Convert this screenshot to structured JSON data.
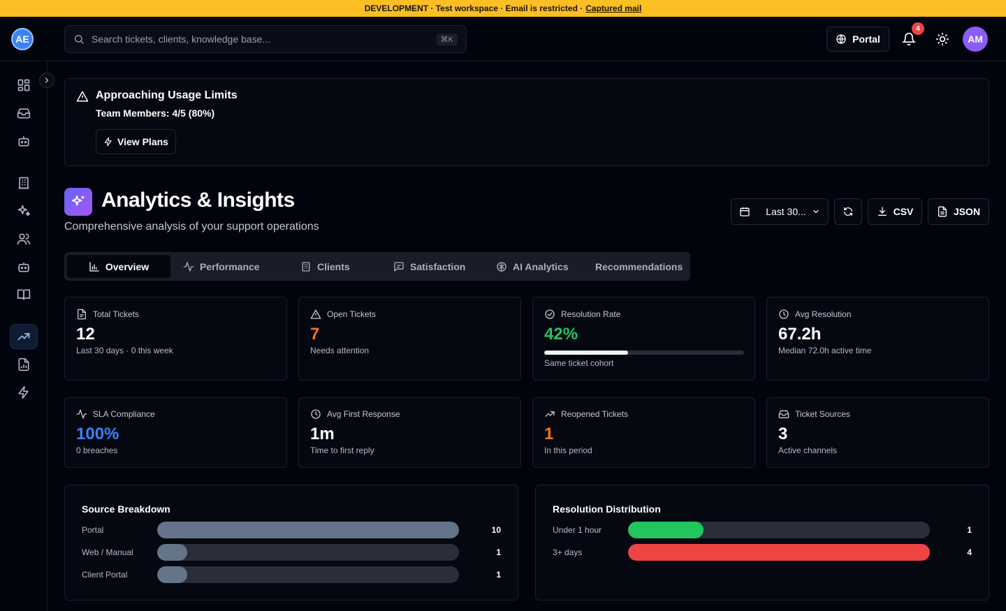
{
  "banner": {
    "text": "DEVELOPMENT · Test workspace · Email is restricted ·",
    "link": "Captured mail"
  },
  "logo": {
    "text": "AE"
  },
  "search": {
    "placeholder": "Search tickets, clients, knowledge base...",
    "shortcut": "⌘K"
  },
  "topbar": {
    "portal_label": "Portal",
    "notification_count": "4",
    "avatar_initials": "AM"
  },
  "sidebar": {
    "items": [
      {
        "icon": "dashboard-icon"
      },
      {
        "icon": "inbox-icon"
      },
      {
        "icon": "bot-icon"
      },
      {
        "icon": "building-icon"
      },
      {
        "icon": "sparkles-icon"
      },
      {
        "icon": "users-icon"
      },
      {
        "icon": "robot-icon"
      },
      {
        "icon": "book-icon"
      },
      {
        "icon": "trending-up-icon",
        "active": true
      },
      {
        "icon": "report-icon"
      },
      {
        "icon": "zap-icon"
      }
    ]
  },
  "usage_alert": {
    "title": "Approaching Usage Limits",
    "detail": "Team Members: 4/5 (80%)",
    "button": "View Plans"
  },
  "header": {
    "title": "Analytics & Insights",
    "subtitle": "Comprehensive analysis of your support operations",
    "date_range": "Last 30...",
    "csv_label": "CSV",
    "json_label": "JSON"
  },
  "tabs": [
    {
      "label": "Overview",
      "active": true
    },
    {
      "label": "Performance"
    },
    {
      "label": "Clients"
    },
    {
      "label": "Satisfaction"
    },
    {
      "label": "AI Analytics"
    },
    {
      "label": "Recommendations"
    }
  ],
  "metrics": [
    {
      "label": "Total Tickets",
      "value": "12",
      "note": "Last 30 days · 0 this week",
      "color": "#ffffff"
    },
    {
      "label": "Open Tickets",
      "value": "7",
      "note": "Needs attention",
      "color": "#f97316"
    },
    {
      "label": "Resolution Rate",
      "value": "42%",
      "note": "Same ticket cohort",
      "color": "#22c55e",
      "progress": 0.42
    },
    {
      "label": "Avg Resolution",
      "value": "67.2h",
      "note": "Median 72.0h active time",
      "color": "#ffffff"
    },
    {
      "label": "SLA Compliance",
      "value": "100%",
      "note": "0 breaches",
      "color": "#3b82f6"
    },
    {
      "label": "Avg First Response",
      "value": "1m",
      "note": "Time to first reply",
      "color": "#ffffff"
    },
    {
      "label": "Reopened Tickets",
      "value": "1",
      "note": "In this period",
      "color": "#f97316"
    },
    {
      "label": "Ticket Sources",
      "value": "3",
      "note": "Active channels",
      "color": "#ffffff"
    }
  ],
  "source_breakdown": {
    "title": "Source Breakdown",
    "max": 10,
    "color": "#64748b",
    "rows": [
      {
        "label": "Portal",
        "value": 10
      },
      {
        "label": "Web / Manual",
        "value": 1
      },
      {
        "label": "Client Portal",
        "value": 1
      }
    ]
  },
  "resolution_distribution": {
    "title": "Resolution Distribution",
    "max": 4,
    "rows": [
      {
        "label": "Under 1 hour",
        "value": 1,
        "color": "#22c55e"
      },
      {
        "label": "3+ days",
        "value": 4,
        "color": "#ef4444"
      }
    ]
  }
}
